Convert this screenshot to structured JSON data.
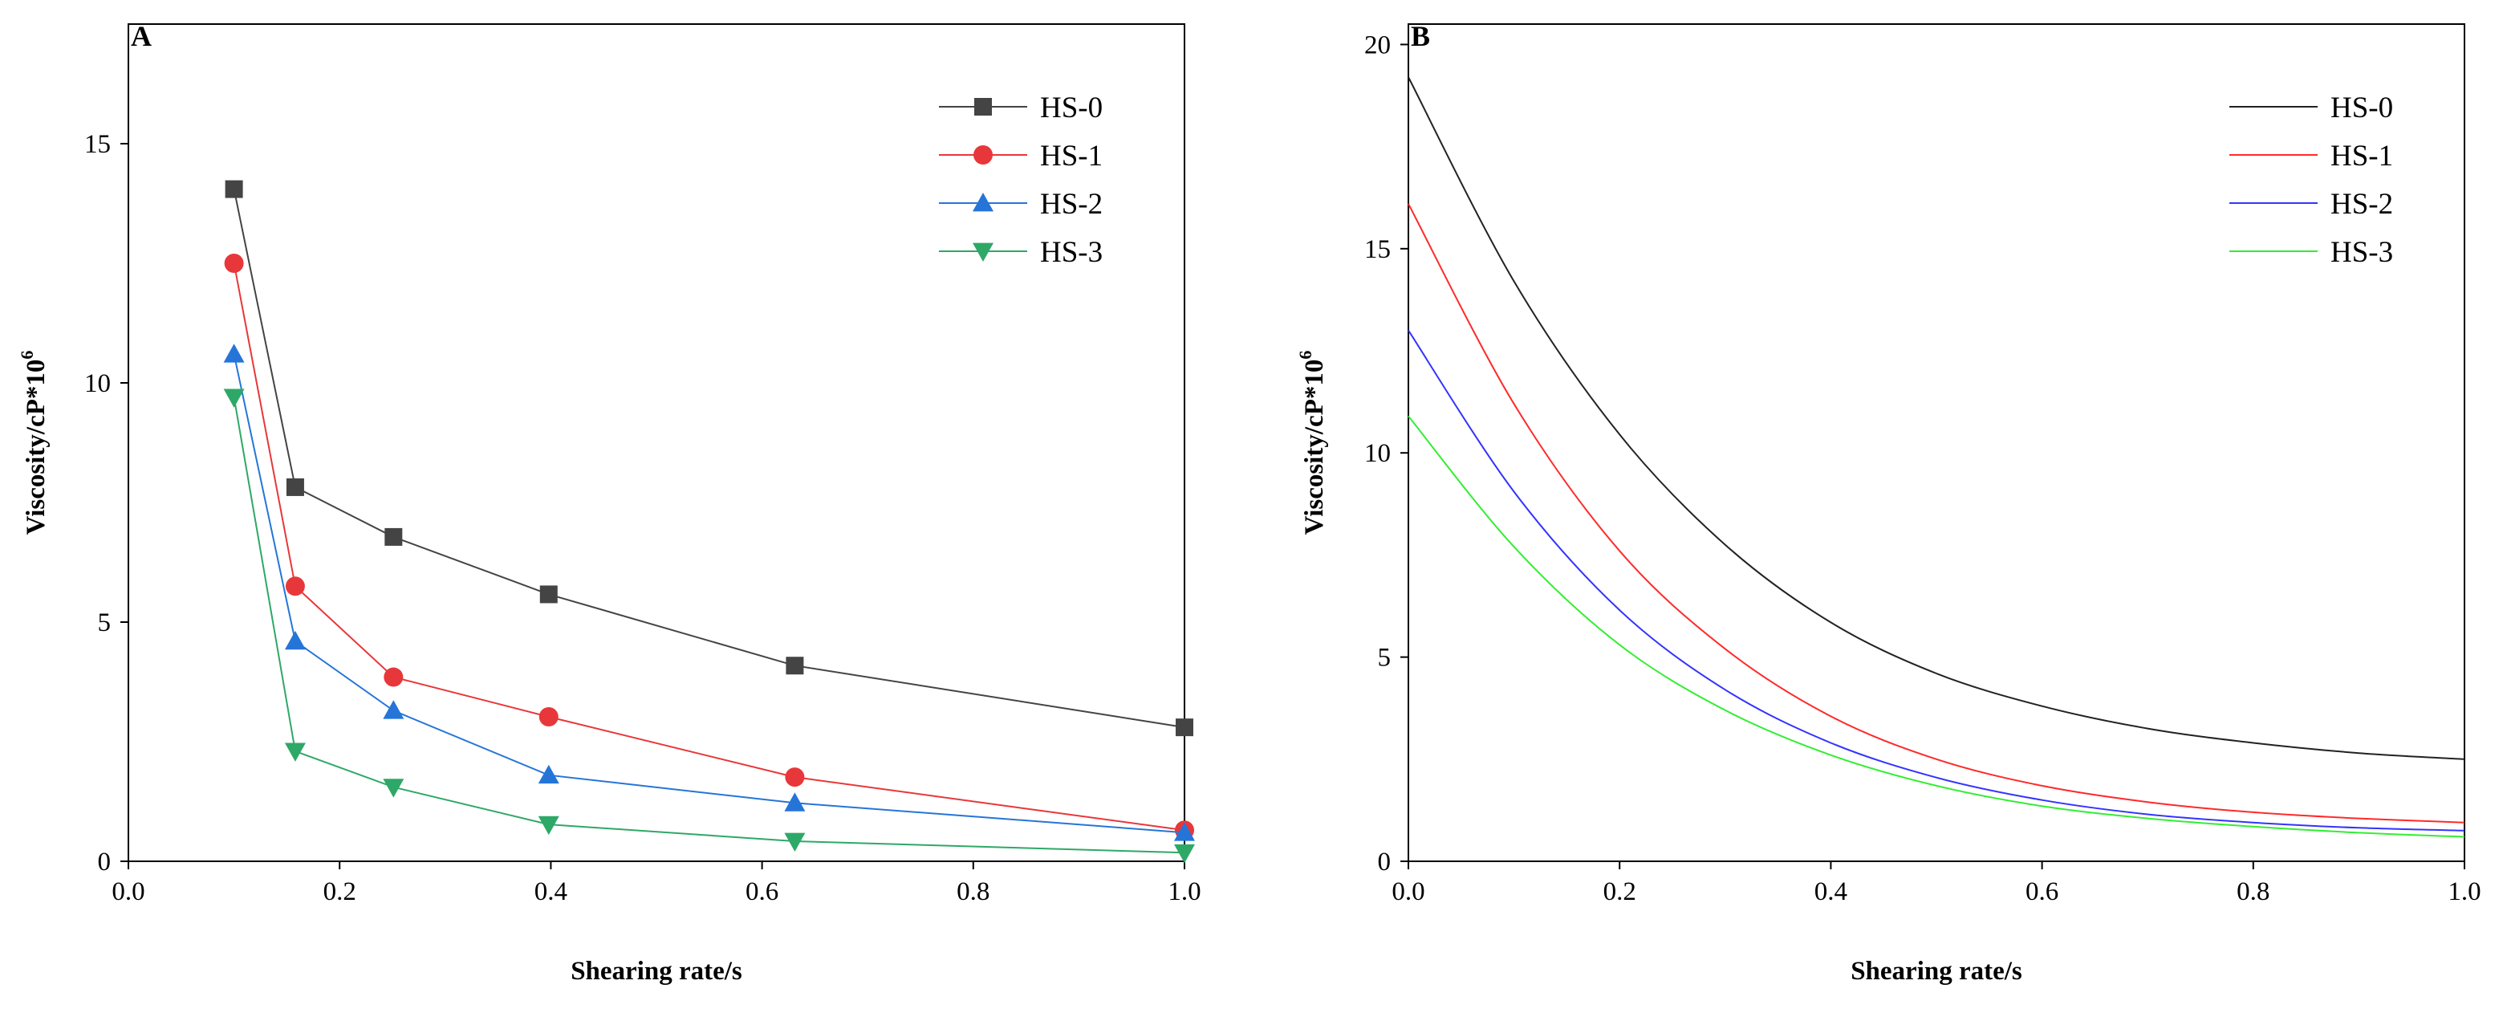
{
  "chart_data": [
    {
      "panel": "A",
      "type": "line",
      "markers": true,
      "xlabel": "Shearing rate/s",
      "ylabel": "Viscosity/cP*10",
      "ylabel_superscript": "6",
      "xlim": [
        0.0,
        1.0
      ],
      "ylim": [
        0,
        17.5
      ],
      "xticks": [
        "0.0",
        "0.2",
        "0.4",
        "0.6",
        "0.8",
        "1.0"
      ],
      "xtick_values": [
        0.0,
        0.2,
        0.4,
        0.6,
        0.8,
        1.0
      ],
      "yticks": [
        "0",
        "5",
        "10",
        "15"
      ],
      "ytick_values": [
        0,
        5,
        10,
        15
      ],
      "legend_position": "top-right",
      "x": [
        0.1,
        0.158,
        0.251,
        0.398,
        0.631,
        1.0
      ],
      "series": [
        {
          "name": "HS-0",
          "color": "#444444",
          "marker": "square",
          "values": [
            14.05,
            7.82,
            6.78,
            5.58,
            4.09,
            2.8
          ]
        },
        {
          "name": "HS-1",
          "color": "#e8373a",
          "marker": "circle",
          "values": [
            12.5,
            5.75,
            3.85,
            3.02,
            1.76,
            0.65
          ]
        },
        {
          "name": "HS-2",
          "color": "#2575d9",
          "marker": "triangle-up",
          "values": [
            10.6,
            4.6,
            3.15,
            1.8,
            1.22,
            0.6
          ]
        },
        {
          "name": "HS-3",
          "color": "#2ea867",
          "marker": "triangle-down",
          "values": [
            9.7,
            2.3,
            1.55,
            0.77,
            0.42,
            0.18
          ]
        }
      ]
    },
    {
      "panel": "B",
      "type": "line",
      "markers": false,
      "xlabel": "Shearing rate/s",
      "ylabel": "Viscosity/cP*10",
      "ylabel_superscript": "6",
      "xlim": [
        0.0,
        1.0
      ],
      "ylim": [
        0,
        20.5
      ],
      "xticks": [
        "0.0",
        "0.2",
        "0.4",
        "0.6",
        "0.8",
        "1.0"
      ],
      "xtick_values": [
        0.0,
        0.2,
        0.4,
        0.6,
        0.8,
        1.0
      ],
      "yticks": [
        "0",
        "5",
        "10",
        "15",
        "20"
      ],
      "ytick_values": [
        0,
        5,
        10,
        15,
        20
      ],
      "legend_position": "top-right",
      "x": [
        0.0,
        0.1,
        0.2,
        0.3,
        0.4,
        0.5,
        0.6,
        0.7,
        0.8,
        0.9,
        1.0
      ],
      "series": [
        {
          "name": "HS-0",
          "color": "#222222",
          "values": [
            19.2,
            14.2,
            10.45,
            7.75,
            5.85,
            4.6,
            3.8,
            3.25,
            2.9,
            2.65,
            2.5
          ]
        },
        {
          "name": "HS-1",
          "color": "#ff2a2a",
          "values": [
            16.1,
            11.2,
            7.6,
            5.2,
            3.55,
            2.5,
            1.85,
            1.45,
            1.2,
            1.05,
            0.95
          ]
        },
        {
          "name": "HS-2",
          "color": "#3333ff",
          "values": [
            13.0,
            9.05,
            6.15,
            4.2,
            2.9,
            2.05,
            1.5,
            1.15,
            0.95,
            0.82,
            0.75
          ]
        },
        {
          "name": "HS-3",
          "color": "#33ee33",
          "values": [
            10.9,
            7.7,
            5.3,
            3.7,
            2.6,
            1.85,
            1.35,
            1.05,
            0.85,
            0.7,
            0.6
          ]
        }
      ]
    }
  ]
}
